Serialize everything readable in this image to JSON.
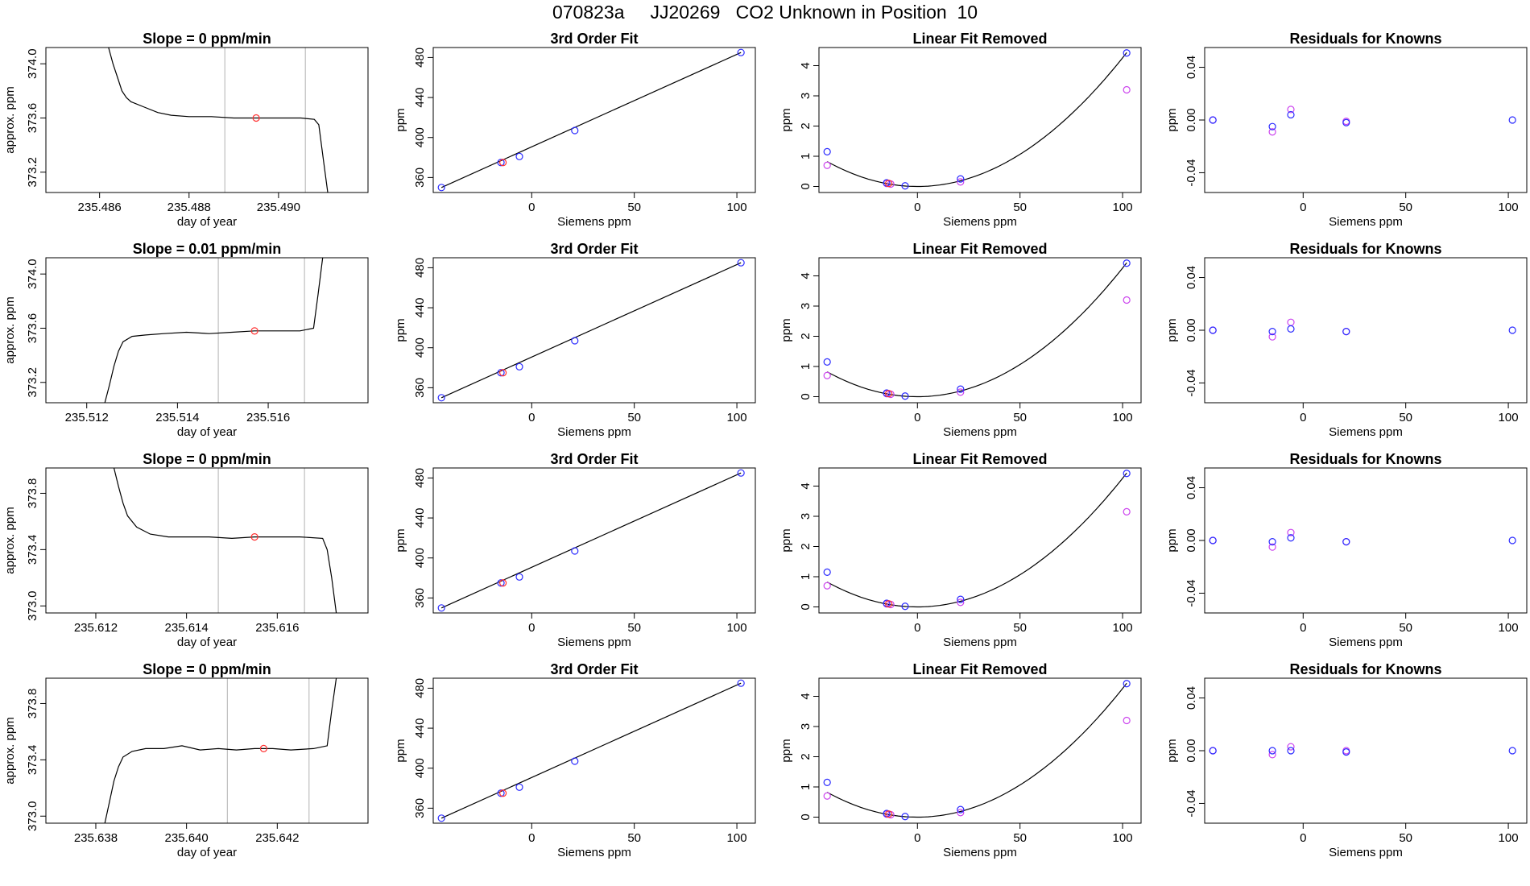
{
  "figure": {
    "title": "070823a     JJ20269   CO2 Unknown in Position  10"
  },
  "colors": {
    "trace": "#000000",
    "marker_point": "#ff3030",
    "knowns": "#2a2aff",
    "alt_knowns": "#cc44ee",
    "window_line": "#bebebe",
    "axis": "#000000"
  },
  "chart_data": [
    {
      "type": "line",
      "row": 0,
      "col": 0,
      "title": "Slope =  0  ppm/min",
      "xlabel": "day of year",
      "ylabel": "approx. ppm",
      "xticks": [
        "235.486",
        "235.488",
        "235.490"
      ],
      "xtick_values": [
        235.486,
        235.488,
        235.49
      ],
      "yticks": [
        "373.2",
        "373.6",
        "374.0"
      ],
      "ytick_values": [
        373.2,
        373.6,
        374.0
      ],
      "xlim": [
        235.4848,
        235.492
      ],
      "ylim": [
        373.05,
        374.12
      ],
      "vlines": [
        235.4888,
        235.4906
      ],
      "marker": {
        "x": 235.4895,
        "y": 373.6
      },
      "trace": {
        "x": [
          235.4862,
          235.4863,
          235.4864,
          235.4865,
          235.4866,
          235.4867,
          235.487,
          235.4873,
          235.4876,
          235.488,
          235.4885,
          235.489,
          235.4895,
          235.49,
          235.4905,
          235.4908,
          235.4909,
          235.491,
          235.4911
        ],
        "y": [
          374.12,
          374.0,
          373.9,
          373.8,
          373.75,
          373.72,
          373.68,
          373.64,
          373.62,
          373.61,
          373.61,
          373.6,
          373.6,
          373.6,
          373.6,
          373.59,
          373.55,
          373.3,
          373.05
        ]
      }
    },
    {
      "type": "scatter",
      "row": 0,
      "col": 1,
      "title": "3rd Order Fit",
      "xlabel": "Siemens ppm",
      "ylabel": "ppm",
      "xticks": [
        "0",
        "50",
        "100"
      ],
      "xtick_values": [
        0,
        50,
        100
      ],
      "yticks": [
        "360",
        "400",
        "440",
        "480"
      ],
      "ytick_values": [
        360,
        400,
        440,
        480
      ],
      "xlim": [
        -48,
        109
      ],
      "ylim": [
        345,
        490
      ],
      "line": {
        "x": [
          -44,
          102
        ],
        "y": [
          350,
          485
        ]
      },
      "knowns": {
        "x": [
          -44,
          -15,
          -6,
          21,
          102
        ],
        "y": [
          350,
          375,
          381,
          407,
          485
        ]
      },
      "unknown": {
        "x": [
          -14
        ],
        "y": [
          375
        ]
      }
    },
    {
      "type": "scatter",
      "row": 0,
      "col": 2,
      "title": "Linear Fit Removed",
      "xlabel": "Siemens ppm",
      "ylabel": "ppm",
      "xticks": [
        "0",
        "50",
        "100"
      ],
      "xtick_values": [
        0,
        50,
        100
      ],
      "yticks": [
        "0",
        "1",
        "2",
        "3",
        "4"
      ],
      "ytick_values": [
        0,
        1,
        2,
        3,
        4
      ],
      "xlim": [
        -48,
        109
      ],
      "ylim": [
        -0.2,
        4.6
      ],
      "curve": {
        "a": 0.000426,
        "b": 0.0,
        "c": 0.0,
        "xmin": -44,
        "xmax": 102
      },
      "knowns": {
        "x": [
          -44,
          -15,
          -6,
          21,
          102
        ],
        "y": [
          1.15,
          0.12,
          0.02,
          0.25,
          4.42
        ]
      },
      "alt_knowns": {
        "x": [
          -44,
          -15,
          -13,
          21,
          102
        ],
        "y": [
          0.7,
          0.1,
          0.08,
          0.15,
          3.2
        ]
      },
      "unknown": {
        "x": [
          -14
        ],
        "y": [
          0.1
        ]
      }
    },
    {
      "type": "scatter",
      "row": 0,
      "col": 3,
      "title": "Residuals for Knowns",
      "xlabel": "Siemens ppm",
      "ylabel": "ppm",
      "xticks": [
        "0",
        "50",
        "100"
      ],
      "xtick_values": [
        0,
        50,
        100
      ],
      "yticks": [
        "-0.04",
        "0.00",
        "0.04"
      ],
      "ytick_values": [
        -0.04,
        0.0,
        0.04
      ],
      "xlim": [
        -48,
        109
      ],
      "ylim": [
        -0.055,
        0.055
      ],
      "knowns": {
        "x": [
          -44,
          -15,
          -6,
          21,
          102
        ],
        "y": [
          0.0,
          -0.005,
          0.004,
          -0.002,
          0.0
        ]
      },
      "alt_knowns": {
        "x": [
          -44,
          -15,
          -6,
          21
        ],
        "y": [
          0.0,
          -0.009,
          0.008,
          -0.001
        ]
      }
    },
    {
      "type": "line",
      "row": 1,
      "col": 0,
      "title": "Slope =  0.01  ppm/min",
      "xlabel": "day of year",
      "ylabel": "approx. ppm",
      "xticks": [
        "235.512",
        "235.514",
        "235.516"
      ],
      "xtick_values": [
        235.512,
        235.514,
        235.516
      ],
      "yticks": [
        "373.2",
        "373.6",
        "374.0"
      ],
      "ytick_values": [
        373.2,
        373.6,
        374.0
      ],
      "xlim": [
        235.5111,
        235.5182
      ],
      "ylim": [
        373.05,
        374.12
      ],
      "vlines": [
        235.5149,
        235.5168
      ],
      "marker": {
        "x": 235.5157,
        "y": 373.58
      },
      "trace": {
        "x": [
          235.5124,
          235.5125,
          235.5126,
          235.5127,
          235.5128,
          235.513,
          235.5133,
          235.5137,
          235.5142,
          235.5147,
          235.5152,
          235.5157,
          235.5162,
          235.5167,
          235.517,
          235.5171,
          235.5172
        ],
        "y": [
          373.05,
          373.18,
          373.32,
          373.43,
          373.5,
          373.54,
          373.55,
          373.56,
          373.57,
          373.56,
          373.57,
          373.58,
          373.58,
          373.58,
          373.6,
          373.85,
          374.12
        ]
      }
    },
    {
      "type": "scatter",
      "row": 1,
      "col": 1,
      "title": "3rd Order Fit",
      "xlabel": "Siemens ppm",
      "ylabel": "ppm",
      "xticks": [
        "0",
        "50",
        "100"
      ],
      "xtick_values": [
        0,
        50,
        100
      ],
      "yticks": [
        "360",
        "400",
        "440",
        "480"
      ],
      "ytick_values": [
        360,
        400,
        440,
        480
      ],
      "xlim": [
        -48,
        109
      ],
      "ylim": [
        345,
        490
      ],
      "line": {
        "x": [
          -44,
          102
        ],
        "y": [
          350,
          485
        ]
      },
      "knowns": {
        "x": [
          -44,
          -15,
          -6,
          21,
          102
        ],
        "y": [
          350,
          375,
          381,
          407,
          485
        ]
      },
      "unknown": {
        "x": [
          -14
        ],
        "y": [
          375
        ]
      }
    },
    {
      "type": "scatter",
      "row": 1,
      "col": 2,
      "title": "Linear Fit Removed",
      "xlabel": "Siemens ppm",
      "ylabel": "ppm",
      "xticks": [
        "0",
        "50",
        "100"
      ],
      "xtick_values": [
        0,
        50,
        100
      ],
      "yticks": [
        "0",
        "1",
        "2",
        "3",
        "4"
      ],
      "ytick_values": [
        0,
        1,
        2,
        3,
        4
      ],
      "xlim": [
        -48,
        109
      ],
      "ylim": [
        -0.2,
        4.6
      ],
      "curve": {
        "a": 0.000426,
        "b": 0.0,
        "c": 0.0,
        "xmin": -44,
        "xmax": 102
      },
      "knowns": {
        "x": [
          -44,
          -15,
          -6,
          21,
          102
        ],
        "y": [
          1.15,
          0.12,
          0.02,
          0.25,
          4.42
        ]
      },
      "alt_knowns": {
        "x": [
          -44,
          -15,
          -13,
          21,
          102
        ],
        "y": [
          0.7,
          0.1,
          0.08,
          0.15,
          3.2
        ]
      },
      "unknown": {
        "x": [
          -14
        ],
        "y": [
          0.1
        ]
      }
    },
    {
      "type": "scatter",
      "row": 1,
      "col": 3,
      "title": "Residuals for Knowns",
      "xlabel": "Siemens ppm",
      "ylabel": "ppm",
      "xticks": [
        "0",
        "50",
        "100"
      ],
      "xtick_values": [
        0,
        50,
        100
      ],
      "yticks": [
        "-0.04",
        "0.00",
        "0.04"
      ],
      "ytick_values": [
        -0.04,
        0.0,
        0.04
      ],
      "xlim": [
        -48,
        109
      ],
      "ylim": [
        -0.055,
        0.055
      ],
      "knowns": {
        "x": [
          -44,
          -15,
          -6,
          21,
          102
        ],
        "y": [
          0.0,
          -0.001,
          0.001,
          -0.001,
          0.0
        ]
      },
      "alt_knowns": {
        "x": [
          -44,
          -15,
          -6,
          21
        ],
        "y": [
          0.0,
          -0.005,
          0.006,
          -0.001
        ]
      }
    },
    {
      "type": "line",
      "row": 2,
      "col": 0,
      "title": "Slope =  0  ppm/min",
      "xlabel": "day of year",
      "ylabel": "approx. ppm",
      "xticks": [
        "235.612",
        "235.614",
        "235.616"
      ],
      "xtick_values": [
        235.612,
        235.614,
        235.616
      ],
      "yticks": [
        "373.0",
        "373.4",
        "373.8"
      ],
      "ytick_values": [
        373.0,
        373.4,
        373.8
      ],
      "xlim": [
        235.6109,
        235.618
      ],
      "ylim": [
        372.95,
        373.98
      ],
      "vlines": [
        235.6147,
        235.6166
      ],
      "marker": {
        "x": 235.6155,
        "y": 373.49
      },
      "trace": {
        "x": [
          235.6124,
          235.6125,
          235.6126,
          235.6127,
          235.6129,
          235.6132,
          235.6136,
          235.614,
          235.6145,
          235.615,
          235.6155,
          235.616,
          235.6165,
          235.617,
          235.6171,
          235.6172,
          235.6173
        ],
        "y": [
          373.98,
          373.85,
          373.73,
          373.64,
          373.56,
          373.51,
          373.49,
          373.49,
          373.49,
          373.48,
          373.49,
          373.49,
          373.49,
          373.48,
          373.4,
          373.2,
          372.95
        ]
      }
    },
    {
      "type": "scatter",
      "row": 2,
      "col": 1,
      "title": "3rd Order Fit",
      "xlabel": "Siemens ppm",
      "ylabel": "ppm",
      "xticks": [
        "0",
        "50",
        "100"
      ],
      "xtick_values": [
        0,
        50,
        100
      ],
      "yticks": [
        "360",
        "400",
        "440",
        "480"
      ],
      "ytick_values": [
        360,
        400,
        440,
        480
      ],
      "xlim": [
        -48,
        109
      ],
      "ylim": [
        345,
        490
      ],
      "line": {
        "x": [
          -44,
          102
        ],
        "y": [
          350,
          485
        ]
      },
      "knowns": {
        "x": [
          -44,
          -15,
          -6,
          21,
          102
        ],
        "y": [
          350,
          375,
          381,
          407,
          485
        ]
      },
      "unknown": {
        "x": [
          -14
        ],
        "y": [
          375
        ]
      }
    },
    {
      "type": "scatter",
      "row": 2,
      "col": 2,
      "title": "Linear Fit Removed",
      "xlabel": "Siemens ppm",
      "ylabel": "ppm",
      "xticks": [
        "0",
        "50",
        "100"
      ],
      "xtick_values": [
        0,
        50,
        100
      ],
      "yticks": [
        "0",
        "1",
        "2",
        "3",
        "4"
      ],
      "ytick_values": [
        0,
        1,
        2,
        3,
        4
      ],
      "xlim": [
        -48,
        109
      ],
      "ylim": [
        -0.2,
        4.6
      ],
      "curve": {
        "a": 0.000426,
        "b": 0.0,
        "c": 0.0,
        "xmin": -44,
        "xmax": 102
      },
      "knowns": {
        "x": [
          -44,
          -15,
          -6,
          21,
          102
        ],
        "y": [
          1.15,
          0.12,
          0.02,
          0.25,
          4.42
        ]
      },
      "alt_knowns": {
        "x": [
          -44,
          -15,
          -13,
          21,
          102
        ],
        "y": [
          0.7,
          0.1,
          0.08,
          0.15,
          3.15
        ]
      },
      "unknown": {
        "x": [
          -14
        ],
        "y": [
          0.1
        ]
      }
    },
    {
      "type": "scatter",
      "row": 2,
      "col": 3,
      "title": "Residuals for Knowns",
      "xlabel": "Siemens ppm",
      "ylabel": "ppm",
      "xticks": [
        "0",
        "50",
        "100"
      ],
      "xtick_values": [
        0,
        50,
        100
      ],
      "yticks": [
        "-0.04",
        "0.00",
        "0.04"
      ],
      "ytick_values": [
        -0.04,
        0.0,
        0.04
      ],
      "xlim": [
        -48,
        109
      ],
      "ylim": [
        -0.055,
        0.055
      ],
      "knowns": {
        "x": [
          -44,
          -15,
          -6,
          21,
          102
        ],
        "y": [
          0.0,
          -0.001,
          0.002,
          -0.001,
          0.0
        ]
      },
      "alt_knowns": {
        "x": [
          -44,
          -15,
          -6,
          21
        ],
        "y": [
          0.0,
          -0.005,
          0.006,
          -0.001
        ]
      }
    },
    {
      "type": "line",
      "row": 3,
      "col": 0,
      "title": "Slope =  0  ppm/min",
      "xlabel": "day of year",
      "ylabel": "approx. ppm",
      "xticks": [
        "235.638",
        "235.640",
        "235.642"
      ],
      "xtick_values": [
        235.638,
        235.64,
        235.642
      ],
      "yticks": [
        "373.0",
        "373.4",
        "373.8"
      ],
      "ytick_values": [
        373.0,
        373.4,
        373.8
      ],
      "xlim": [
        235.6369,
        235.644
      ],
      "ylim": [
        372.95,
        373.98
      ],
      "vlines": [
        235.6409,
        235.6427
      ],
      "marker": {
        "x": 235.6417,
        "y": 373.48
      },
      "trace": {
        "x": [
          235.6382,
          235.6383,
          235.6384,
          235.6385,
          235.6386,
          235.6388,
          235.6391,
          235.6395,
          235.6399,
          235.6403,
          235.6407,
          235.6411,
          235.6415,
          235.6419,
          235.6423,
          235.6428,
          235.6431,
          235.6432,
          235.6433
        ],
        "y": [
          372.95,
          373.1,
          373.25,
          373.35,
          373.42,
          373.46,
          373.48,
          373.48,
          373.5,
          373.47,
          373.48,
          373.47,
          373.48,
          373.48,
          373.47,
          373.48,
          373.5,
          373.75,
          373.98
        ]
      }
    },
    {
      "type": "scatter",
      "row": 3,
      "col": 1,
      "title": "3rd Order Fit",
      "xlabel": "Siemens ppm",
      "ylabel": "ppm",
      "xticks": [
        "0",
        "50",
        "100"
      ],
      "xtick_values": [
        0,
        50,
        100
      ],
      "yticks": [
        "360",
        "400",
        "440",
        "480"
      ],
      "ytick_values": [
        360,
        400,
        440,
        480
      ],
      "xlim": [
        -48,
        109
      ],
      "ylim": [
        345,
        490
      ],
      "line": {
        "x": [
          -44,
          102
        ],
        "y": [
          350,
          485
        ]
      },
      "knowns": {
        "x": [
          -44,
          -15,
          -6,
          21,
          102
        ],
        "y": [
          350,
          375,
          381,
          407,
          485
        ]
      },
      "unknown": {
        "x": [
          -14
        ],
        "y": [
          375
        ]
      }
    },
    {
      "type": "scatter",
      "row": 3,
      "col": 2,
      "title": "Linear Fit Removed",
      "xlabel": "Siemens ppm",
      "ylabel": "ppm",
      "xticks": [
        "0",
        "50",
        "100"
      ],
      "xtick_values": [
        0,
        50,
        100
      ],
      "yticks": [
        "0",
        "1",
        "2",
        "3",
        "4"
      ],
      "ytick_values": [
        0,
        1,
        2,
        3,
        4
      ],
      "xlim": [
        -48,
        109
      ],
      "ylim": [
        -0.2,
        4.6
      ],
      "curve": {
        "a": 0.000426,
        "b": 0.0,
        "c": 0.0,
        "xmin": -44,
        "xmax": 102
      },
      "knowns": {
        "x": [
          -44,
          -15,
          -6,
          21,
          102
        ],
        "y": [
          1.15,
          0.12,
          0.02,
          0.25,
          4.42
        ]
      },
      "alt_knowns": {
        "x": [
          -44,
          -15,
          -13,
          21,
          102
        ],
        "y": [
          0.7,
          0.1,
          0.08,
          0.15,
          3.2
        ]
      },
      "unknown": {
        "x": [
          -14
        ],
        "y": [
          0.1
        ]
      }
    },
    {
      "type": "scatter",
      "row": 3,
      "col": 3,
      "title": "Residuals for Knowns",
      "xlabel": "Siemens ppm",
      "ylabel": "ppm",
      "xticks": [
        "0",
        "50",
        "100"
      ],
      "xtick_values": [
        0,
        50,
        100
      ],
      "yticks": [
        "-0.04",
        "0.00",
        "0.04"
      ],
      "ytick_values": [
        -0.04,
        0.0,
        0.04
      ],
      "xlim": [
        -48,
        109
      ],
      "ylim": [
        -0.055,
        0.055
      ],
      "knowns": {
        "x": [
          -44,
          -15,
          -6,
          21,
          102
        ],
        "y": [
          0.0,
          0.0,
          0.0,
          -0.001,
          0.0
        ]
      },
      "alt_knowns": {
        "x": [
          -44,
          -15,
          -6,
          21
        ],
        "y": [
          0.0,
          -0.003,
          0.003,
          0.0
        ]
      }
    }
  ]
}
